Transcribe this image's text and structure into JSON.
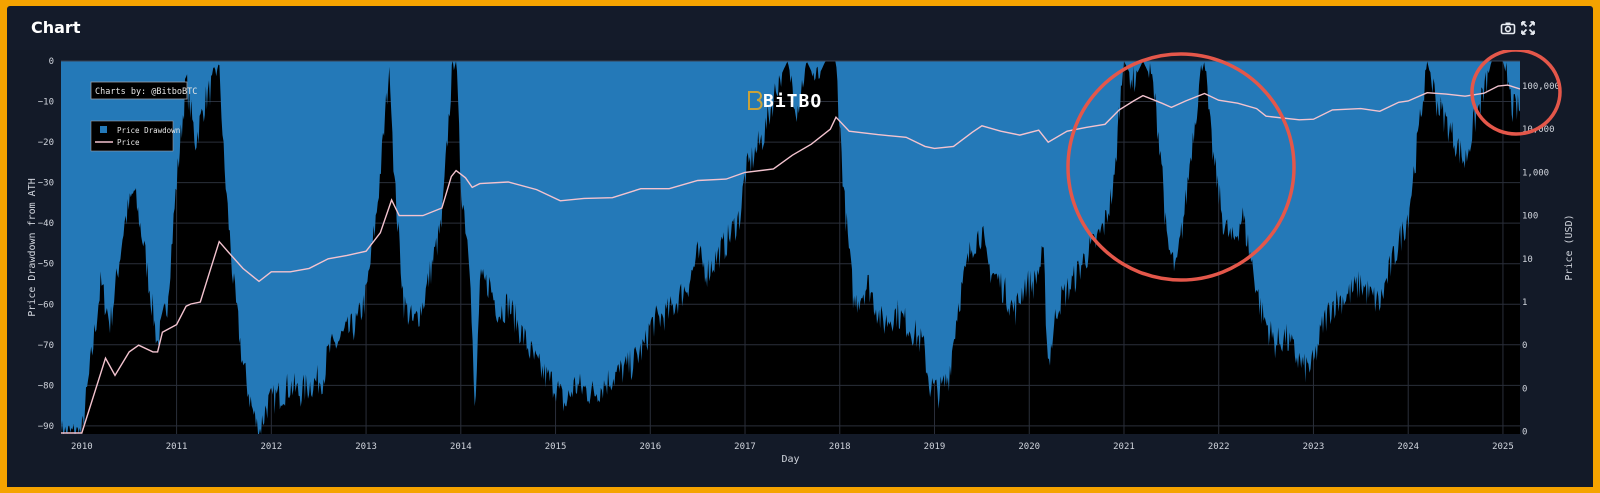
{
  "header": {
    "title": "Chart",
    "camera_icon": "camera-icon",
    "expand_icon": "expand-icon"
  },
  "watermark": {
    "text": "BiTBO"
  },
  "credit": {
    "text": "Charts by: @BitboBTC"
  },
  "legend": {
    "items": [
      {
        "label": "Price Drawdown",
        "color": "#2479b8"
      },
      {
        "label": "Price",
        "color": "#f3c3cf"
      }
    ]
  },
  "colors": {
    "drawdown": "#2479b8",
    "price": "#f3c3cf",
    "plot_bg": "#000000",
    "annotation": "#e4574a",
    "frame": "#f5a300"
  },
  "chart_data": {
    "type": "area",
    "xlabel": "Day",
    "ylabel_left": "Price Drawdown from ATH",
    "ylabel_right": "Price (USD)",
    "x_tick_labels": [
      "2010",
      "2011",
      "2012",
      "2013",
      "2014",
      "2015",
      "2016",
      "2017",
      "2018",
      "2019",
      "2020",
      "2021",
      "2022",
      "2023",
      "2024",
      "2025"
    ],
    "y_left_ticks": [
      "0",
      "−10",
      "−20",
      "−30",
      "−40",
      "−50",
      "−60",
      "−70",
      "−80",
      "−90"
    ],
    "y_left_range": [
      -92,
      0
    ],
    "y_right_ticks": [
      "100,000",
      "10,000",
      "1,000",
      "100",
      "10",
      "1",
      "0",
      "0",
      "0"
    ],
    "y_right_scale": "log",
    "x_range": [
      2009.78,
      2025.18
    ],
    "grid": true,
    "legend_position": "top-left",
    "series": [
      {
        "name": "Price Drawdown",
        "points": [
          [
            2009.78,
            -92
          ],
          [
            2010.0,
            -92
          ],
          [
            2010.2,
            -55
          ],
          [
            2010.3,
            -65
          ],
          [
            2010.45,
            -40
          ],
          [
            2010.55,
            -32
          ],
          [
            2010.65,
            -45
          ],
          [
            2010.8,
            -70
          ],
          [
            2010.9,
            -60
          ],
          [
            2011.0,
            -30
          ],
          [
            2011.1,
            -5
          ],
          [
            2011.2,
            -20
          ],
          [
            2011.3,
            -10
          ],
          [
            2011.4,
            -5
          ],
          [
            2011.45,
            0
          ],
          [
            2011.5,
            -25
          ],
          [
            2011.6,
            -55
          ],
          [
            2011.7,
            -75
          ],
          [
            2011.8,
            -86
          ],
          [
            2011.87,
            -92
          ],
          [
            2011.95,
            -85
          ],
          [
            2012.1,
            -82
          ],
          [
            2012.2,
            -80
          ],
          [
            2012.3,
            -82
          ],
          [
            2012.4,
            -80
          ],
          [
            2012.55,
            -78
          ],
          [
            2012.6,
            -72
          ],
          [
            2012.75,
            -68
          ],
          [
            2012.9,
            -65
          ],
          [
            2013.0,
            -58
          ],
          [
            2013.1,
            -40
          ],
          [
            2013.18,
            -20
          ],
          [
            2013.25,
            0
          ],
          [
            2013.3,
            -30
          ],
          [
            2013.4,
            -60
          ],
          [
            2013.5,
            -65
          ],
          [
            2013.6,
            -60
          ],
          [
            2013.7,
            -50
          ],
          [
            2013.8,
            -40
          ],
          [
            2013.9,
            -5
          ],
          [
            2013.95,
            0
          ],
          [
            2014.0,
            -30
          ],
          [
            2014.1,
            -50
          ],
          [
            2014.15,
            -90
          ],
          [
            2014.2,
            -55
          ],
          [
            2014.3,
            -55
          ],
          [
            2014.4,
            -62
          ],
          [
            2014.5,
            -60
          ],
          [
            2014.6,
            -65
          ],
          [
            2014.7,
            -70
          ],
          [
            2014.8,
            -75
          ],
          [
            2014.9,
            -78
          ],
          [
            2015.0,
            -80
          ],
          [
            2015.1,
            -85
          ],
          [
            2015.2,
            -80
          ],
          [
            2015.4,
            -82
          ],
          [
            2015.6,
            -78
          ],
          [
            2015.8,
            -75
          ],
          [
            2015.95,
            -70
          ],
          [
            2016.0,
            -65
          ],
          [
            2016.2,
            -62
          ],
          [
            2016.4,
            -55
          ],
          [
            2016.5,
            -48
          ],
          [
            2016.6,
            -52
          ],
          [
            2016.8,
            -45
          ],
          [
            2016.95,
            -38
          ],
          [
            2017.0,
            -28
          ],
          [
            2017.2,
            -18
          ],
          [
            2017.35,
            -5
          ],
          [
            2017.45,
            0
          ],
          [
            2017.55,
            -12
          ],
          [
            2017.65,
            0
          ],
          [
            2017.75,
            -5
          ],
          [
            2017.85,
            0
          ],
          [
            2017.96,
            0
          ],
          [
            2018.05,
            -35
          ],
          [
            2018.15,
            -60
          ],
          [
            2018.3,
            -55
          ],
          [
            2018.45,
            -65
          ],
          [
            2018.6,
            -62
          ],
          [
            2018.75,
            -66
          ],
          [
            2018.88,
            -70
          ],
          [
            2018.95,
            -80
          ],
          [
            2019.05,
            -82
          ],
          [
            2019.15,
            -78
          ],
          [
            2019.25,
            -60
          ],
          [
            2019.4,
            -45
          ],
          [
            2019.5,
            -42
          ],
          [
            2019.55,
            -50
          ],
          [
            2019.7,
            -55
          ],
          [
            2019.85,
            -62
          ],
          [
            2019.95,
            -55
          ],
          [
            2020.05,
            -55
          ],
          [
            2020.15,
            -48
          ],
          [
            2020.2,
            -75
          ],
          [
            2020.3,
            -60
          ],
          [
            2020.45,
            -55
          ],
          [
            2020.6,
            -48
          ],
          [
            2020.7,
            -45
          ],
          [
            2020.8,
            -40
          ],
          [
            2020.9,
            -30
          ],
          [
            2020.95,
            -12
          ],
          [
            2021.0,
            0
          ],
          [
            2021.1,
            -5
          ],
          [
            2021.2,
            0
          ],
          [
            2021.3,
            -5
          ],
          [
            2021.4,
            -25
          ],
          [
            2021.45,
            -45
          ],
          [
            2021.55,
            -52
          ],
          [
            2021.65,
            -35
          ],
          [
            2021.72,
            -20
          ],
          [
            2021.8,
            -5
          ],
          [
            2021.85,
            0
          ],
          [
            2021.9,
            -15
          ],
          [
            2021.95,
            -25
          ],
          [
            2022.05,
            -40
          ],
          [
            2022.15,
            -45
          ],
          [
            2022.25,
            -38
          ],
          [
            2022.35,
            -50
          ],
          [
            2022.45,
            -62
          ],
          [
            2022.6,
            -70
          ],
          [
            2022.7,
            -68
          ],
          [
            2022.8,
            -72
          ],
          [
            2022.9,
            -76
          ],
          [
            2023.0,
            -75
          ],
          [
            2023.1,
            -65
          ],
          [
            2023.2,
            -60
          ],
          [
            2023.35,
            -58
          ],
          [
            2023.5,
            -55
          ],
          [
            2023.6,
            -58
          ],
          [
            2023.7,
            -60
          ],
          [
            2023.8,
            -52
          ],
          [
            2023.9,
            -45
          ],
          [
            2024.0,
            -38
          ],
          [
            2024.1,
            -20
          ],
          [
            2024.2,
            0
          ],
          [
            2024.3,
            -10
          ],
          [
            2024.4,
            -15
          ],
          [
            2024.5,
            -20
          ],
          [
            2024.6,
            -25
          ],
          [
            2024.7,
            -15
          ],
          [
            2024.8,
            -8
          ],
          [
            2024.88,
            0
          ],
          [
            2025.0,
            0
          ],
          [
            2025.05,
            -5
          ],
          [
            2025.1,
            -12
          ],
          [
            2025.18,
            -12
          ]
        ]
      },
      {
        "name": "Price",
        "points": [
          [
            2009.78,
            0.0007
          ],
          [
            2010.0,
            0.0007
          ],
          [
            2010.25,
            0.05
          ],
          [
            2010.35,
            0.02
          ],
          [
            2010.5,
            0.07
          ],
          [
            2010.6,
            0.1
          ],
          [
            2010.75,
            0.07
          ],
          [
            2010.8,
            0.07
          ],
          [
            2010.85,
            0.2
          ],
          [
            2011.0,
            0.3
          ],
          [
            2011.1,
            0.8
          ],
          [
            2011.15,
            0.9
          ],
          [
            2011.25,
            1.0
          ],
          [
            2011.35,
            5
          ],
          [
            2011.45,
            25
          ],
          [
            2011.55,
            14
          ],
          [
            2011.7,
            6
          ],
          [
            2011.87,
            3
          ],
          [
            2012.0,
            5
          ],
          [
            2012.2,
            5
          ],
          [
            2012.4,
            6
          ],
          [
            2012.6,
            10
          ],
          [
            2012.8,
            12
          ],
          [
            2013.0,
            15
          ],
          [
            2013.15,
            40
          ],
          [
            2013.27,
            230
          ],
          [
            2013.35,
            100
          ],
          [
            2013.6,
            100
          ],
          [
            2013.8,
            150
          ],
          [
            2013.9,
            800
          ],
          [
            2013.95,
            1100
          ],
          [
            2014.05,
            750
          ],
          [
            2014.12,
            450
          ],
          [
            2014.2,
            550
          ],
          [
            2014.5,
            600
          ],
          [
            2014.8,
            400
          ],
          [
            2015.05,
            220
          ],
          [
            2015.3,
            250
          ],
          [
            2015.6,
            260
          ],
          [
            2015.9,
            420
          ],
          [
            2016.2,
            420
          ],
          [
            2016.5,
            650
          ],
          [
            2016.8,
            700
          ],
          [
            2017.0,
            1000
          ],
          [
            2017.3,
            1200
          ],
          [
            2017.5,
            2500
          ],
          [
            2017.7,
            4500
          ],
          [
            2017.9,
            10000
          ],
          [
            2017.96,
            19000
          ],
          [
            2018.1,
            9000
          ],
          [
            2018.4,
            7500
          ],
          [
            2018.7,
            6500
          ],
          [
            2018.9,
            4000
          ],
          [
            2019.0,
            3600
          ],
          [
            2019.2,
            4000
          ],
          [
            2019.4,
            8500
          ],
          [
            2019.5,
            12000
          ],
          [
            2019.7,
            9000
          ],
          [
            2019.9,
            7300
          ],
          [
            2020.1,
            9500
          ],
          [
            2020.2,
            5000
          ],
          [
            2020.4,
            9000
          ],
          [
            2020.6,
            11000
          ],
          [
            2020.8,
            13000
          ],
          [
            2020.95,
            28000
          ],
          [
            2021.1,
            45000
          ],
          [
            2021.2,
            60000
          ],
          [
            2021.4,
            40000
          ],
          [
            2021.5,
            32000
          ],
          [
            2021.65,
            45000
          ],
          [
            2021.85,
            67000
          ],
          [
            2022.0,
            47000
          ],
          [
            2022.2,
            40000
          ],
          [
            2022.4,
            30000
          ],
          [
            2022.5,
            20000
          ],
          [
            2022.85,
            16500
          ],
          [
            2023.0,
            17000
          ],
          [
            2023.2,
            28000
          ],
          [
            2023.5,
            30000
          ],
          [
            2023.7,
            26000
          ],
          [
            2023.9,
            42000
          ],
          [
            2024.0,
            45000
          ],
          [
            2024.2,
            70000
          ],
          [
            2024.4,
            65000
          ],
          [
            2024.6,
            58000
          ],
          [
            2024.8,
            68000
          ],
          [
            2024.95,
            100000
          ],
          [
            2025.05,
            105000
          ],
          [
            2025.18,
            85000
          ]
        ]
      }
    ]
  }
}
